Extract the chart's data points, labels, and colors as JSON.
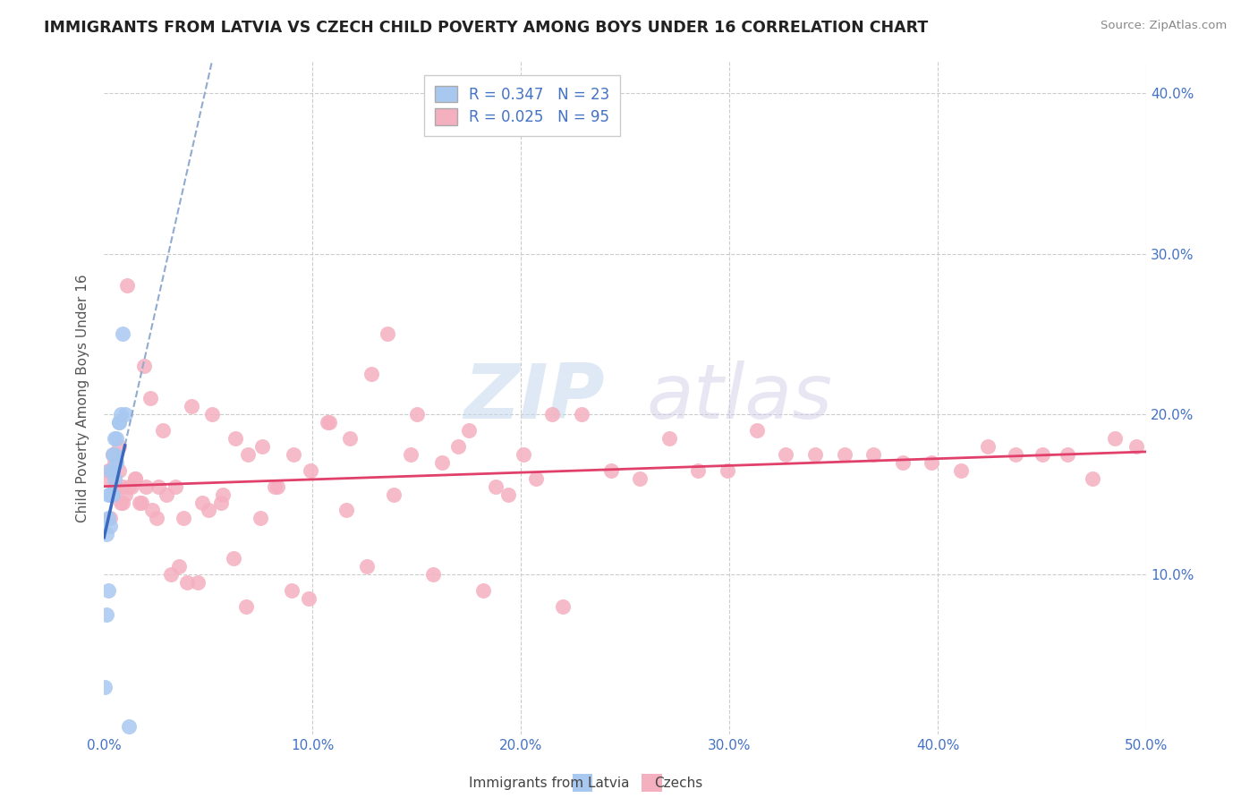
{
  "title": "IMMIGRANTS FROM LATVIA VS CZECH CHILD POVERTY AMONG BOYS UNDER 16 CORRELATION CHART",
  "source": "Source: ZipAtlas.com",
  "ylabel": "Child Poverty Among Boys Under 16",
  "xlim": [
    0.0,
    0.5
  ],
  "ylim": [
    0.0,
    0.42
  ],
  "x_tick_labels": [
    "0.0%",
    "10.0%",
    "20.0%",
    "30.0%",
    "40.0%",
    "50.0%"
  ],
  "y_tick_labels": [
    "10.0%",
    "20.0%",
    "30.0%",
    "40.0%"
  ],
  "color_blue": "#a8c8f0",
  "color_pink": "#f5b0c0",
  "line_blue_solid": "#3a6abf",
  "line_blue_dash": "#90aad0",
  "line_pink": "#e0406a",
  "legend_R_blue": "0.347",
  "legend_N_blue": "23",
  "legend_R_pink": "0.025",
  "legend_N_pink": "95",
  "legend_label_blue": "Immigrants from Latvia",
  "legend_label_pink": "Czechs",
  "watermark": "ZIPatlas",
  "blue_x": [
    0.0005,
    0.001,
    0.001,
    0.002,
    0.002,
    0.002,
    0.003,
    0.003,
    0.003,
    0.004,
    0.004,
    0.004,
    0.005,
    0.005,
    0.005,
    0.006,
    0.006,
    0.007,
    0.007,
    0.008,
    0.009,
    0.01,
    0.012
  ],
  "blue_y": [
    0.03,
    0.075,
    0.125,
    0.09,
    0.135,
    0.15,
    0.13,
    0.15,
    0.165,
    0.15,
    0.165,
    0.175,
    0.16,
    0.175,
    0.185,
    0.17,
    0.185,
    0.195,
    0.195,
    0.2,
    0.25,
    0.2,
    0.005
  ],
  "pink_x": [
    0.002,
    0.003,
    0.004,
    0.005,
    0.006,
    0.007,
    0.008,
    0.009,
    0.01,
    0.012,
    0.015,
    0.018,
    0.02,
    0.023,
    0.026,
    0.03,
    0.034,
    0.038,
    0.042,
    0.047,
    0.052,
    0.057,
    0.063,
    0.069,
    0.076,
    0.083,
    0.091,
    0.099,
    0.108,
    0.118,
    0.128,
    0.139,
    0.15,
    0.162,
    0.175,
    0.188,
    0.201,
    0.215,
    0.229,
    0.243,
    0.257,
    0.271,
    0.285,
    0.299,
    0.313,
    0.327,
    0.341,
    0.355,
    0.369,
    0.383,
    0.397,
    0.411,
    0.424,
    0.437,
    0.45,
    0.462,
    0.474,
    0.485,
    0.495,
    0.002,
    0.003,
    0.005,
    0.007,
    0.009,
    0.011,
    0.013,
    0.015,
    0.017,
    0.019,
    0.022,
    0.025,
    0.028,
    0.032,
    0.036,
    0.04,
    0.045,
    0.05,
    0.056,
    0.062,
    0.068,
    0.075,
    0.082,
    0.09,
    0.098,
    0.107,
    0.116,
    0.126,
    0.136,
    0.147,
    0.158,
    0.17,
    0.182,
    0.194,
    0.207,
    0.22
  ],
  "pink_y": [
    0.16,
    0.165,
    0.175,
    0.155,
    0.155,
    0.165,
    0.145,
    0.155,
    0.15,
    0.155,
    0.16,
    0.145,
    0.155,
    0.14,
    0.155,
    0.15,
    0.155,
    0.135,
    0.205,
    0.145,
    0.2,
    0.15,
    0.185,
    0.175,
    0.18,
    0.155,
    0.175,
    0.165,
    0.195,
    0.185,
    0.225,
    0.15,
    0.2,
    0.17,
    0.19,
    0.155,
    0.175,
    0.2,
    0.2,
    0.165,
    0.16,
    0.185,
    0.165,
    0.165,
    0.19,
    0.175,
    0.175,
    0.175,
    0.175,
    0.17,
    0.17,
    0.165,
    0.18,
    0.175,
    0.175,
    0.175,
    0.16,
    0.185,
    0.18,
    0.165,
    0.135,
    0.17,
    0.18,
    0.145,
    0.28,
    0.155,
    0.16,
    0.145,
    0.23,
    0.21,
    0.135,
    0.19,
    0.1,
    0.105,
    0.095,
    0.095,
    0.14,
    0.145,
    0.11,
    0.08,
    0.135,
    0.155,
    0.09,
    0.085,
    0.195,
    0.14,
    0.105,
    0.25,
    0.175,
    0.1,
    0.18,
    0.09,
    0.15,
    0.16,
    0.08
  ]
}
